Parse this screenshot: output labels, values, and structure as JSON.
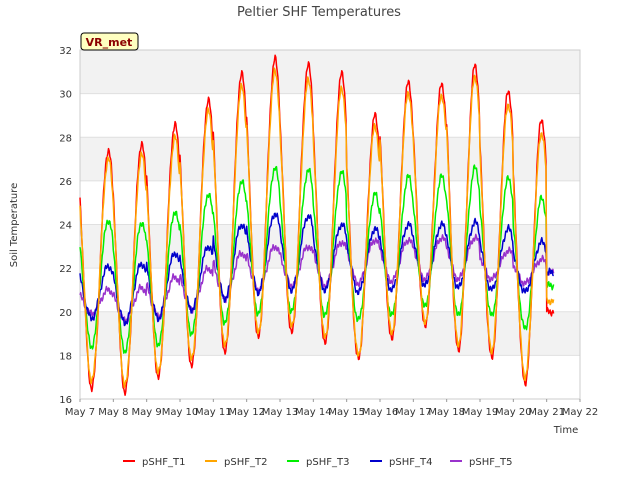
{
  "chart_data": {
    "type": "line",
    "title": "Peltier SHF Temperatures",
    "xlabel": "Time",
    "ylabel": "Soil Temperature",
    "badge": "VR_met",
    "ylim": [
      16,
      32
    ],
    "xlim": [
      0,
      15
    ],
    "y_ticks": [
      16,
      18,
      20,
      22,
      24,
      26,
      28,
      30,
      32
    ],
    "x_tick_labels": [
      "May 7",
      "May 8",
      "May 9",
      "May 10",
      "May 11",
      "May 12",
      "May 13",
      "May 14",
      "May 15",
      "May 16",
      "May 17",
      "May 18",
      "May 19",
      "May 20",
      "May 21",
      "May 22"
    ],
    "grid": true,
    "legend_position": "bottom",
    "colors": {
      "pSHF_T1": "#ff0000",
      "pSHF_T2": "#ffa500",
      "pSHF_T3": "#00ee00",
      "pSHF_T4": "#0000cc",
      "pSHF_T5": "#9932cc"
    },
    "series_params": [
      {
        "name": "pSHF_T1",
        "mins": [
          16.5,
          16.3,
          17.0,
          17.5,
          18.1,
          18.8,
          19.0,
          18.5,
          17.8,
          18.7,
          19.3,
          18.2,
          17.9,
          16.7,
          20.0
        ],
        "maxs": [
          27.4,
          27.7,
          28.6,
          29.7,
          30.9,
          31.6,
          31.3,
          30.9,
          29.0,
          30.5,
          30.4,
          31.3,
          30.1,
          28.8,
          20.0
        ]
      },
      {
        "name": "pSHF_T2",
        "mins": [
          16.8,
          16.6,
          17.2,
          17.8,
          18.4,
          19.0,
          19.3,
          18.8,
          18.0,
          19.0,
          19.5,
          18.5,
          18.2,
          17.0,
          20.5
        ],
        "maxs": [
          27.0,
          27.2,
          28.0,
          29.2,
          30.3,
          31.0,
          30.6,
          30.2,
          28.5,
          30.0,
          29.9,
          30.8,
          29.5,
          28.2,
          20.5
        ]
      },
      {
        "name": "pSHF_T3",
        "mins": [
          18.4,
          18.2,
          18.5,
          19.0,
          19.5,
          19.9,
          20.0,
          19.8,
          19.6,
          19.8,
          20.2,
          19.8,
          19.8,
          19.2,
          21.2
        ],
        "maxs": [
          24.2,
          24.1,
          24.6,
          25.4,
          26.0,
          26.6,
          26.5,
          26.4,
          25.4,
          26.2,
          26.2,
          26.6,
          26.1,
          25.2,
          21.2
        ]
      },
      {
        "name": "pSHF_T4",
        "mins": [
          19.7,
          19.5,
          19.7,
          20.1,
          20.6,
          20.9,
          21.0,
          21.0,
          20.9,
          21.0,
          21.2,
          21.1,
          21.0,
          20.9,
          21.8
        ],
        "maxs": [
          22.1,
          22.2,
          22.7,
          23.0,
          24.0,
          24.5,
          24.4,
          24.0,
          23.8,
          24.0,
          24.0,
          24.1,
          23.8,
          23.2,
          21.8
        ]
      },
      {
        "name": "pSHF_T5",
        "mins": [
          19.9,
          19.6,
          19.8,
          20.1,
          20.6,
          21.0,
          21.2,
          21.2,
          21.3,
          21.4,
          21.5,
          21.5,
          21.5,
          21.3,
          21.8
        ],
        "maxs": [
          21.0,
          21.1,
          21.6,
          22.0,
          22.7,
          23.0,
          23.0,
          23.2,
          23.3,
          23.3,
          23.4,
          23.4,
          22.8,
          22.4,
          21.8
        ]
      }
    ],
    "samples_per_day": 48
  },
  "legend": {
    "items": [
      "pSHF_T1",
      "pSHF_T2",
      "pSHF_T3",
      "pSHF_T4",
      "pSHF_T5"
    ]
  }
}
